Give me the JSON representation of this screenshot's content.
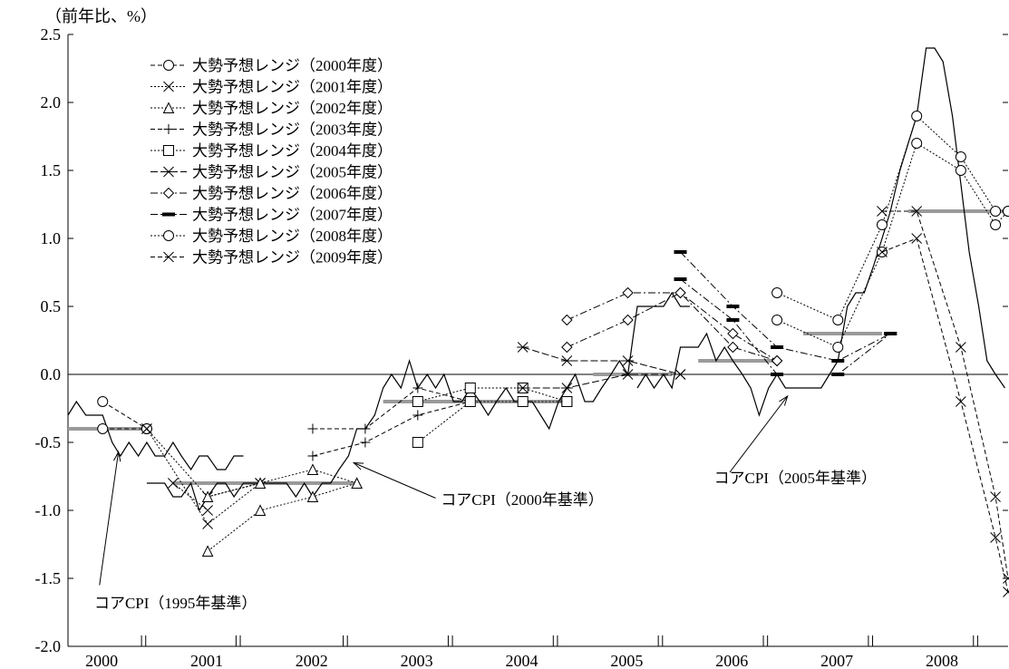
{
  "chart_data": {
    "type": "line",
    "unit_label": "（前年比、%）",
    "ylim": [
      -2.0,
      2.5
    ],
    "yticks": [
      2.5,
      2.0,
      1.5,
      1.0,
      0.5,
      0.0,
      -0.5,
      -1.0,
      -1.5,
      -2.0
    ],
    "ytick_labels": [
      "2.5",
      "2.0",
      "1.5",
      "1.0",
      "0.5",
      "0.0",
      "-0.5",
      "-1.0",
      "-1.5",
      "-2.0"
    ],
    "xlim": [
      2000.0,
      2008.95
    ],
    "x_year_labels": [
      "2000",
      "2001",
      "2002",
      "2003",
      "2004",
      "2005",
      "2006",
      "2007",
      "2008"
    ],
    "x_minor_ticks": [
      2000.7,
      2000.74,
      2001.6,
      2001.64,
      2002.62,
      2002.66,
      2003.62,
      2003.66,
      2004.62,
      2004.66,
      2005.62,
      2005.66,
      2006.62,
      2006.66,
      2007.62,
      2007.66,
      2008.62,
      2008.66
    ],
    "grid": false,
    "legend_position": "top-left",
    "legend": [
      {
        "label": "大勢予想レンジ（2000年度）",
        "marker": "circle",
        "dash": "5,3"
      },
      {
        "label": "大勢予想レンジ（2001年度）",
        "marker": "x",
        "dash": "2,2"
      },
      {
        "label": "大勢予想レンジ（2002年度）",
        "marker": "triangle",
        "dash": "2,2"
      },
      {
        "label": "大勢予想レンジ（2003年度）",
        "marker": "plus",
        "dash": "5,3"
      },
      {
        "label": "大勢予想レンジ（2004年度）",
        "marker": "square",
        "dash": "2,2"
      },
      {
        "label": "大勢予想レンジ（2005年度）",
        "marker": "asterisk",
        "dash": "8,3"
      },
      {
        "label": "大勢予想レンジ（2006年度）",
        "marker": "diamond",
        "dash": "8,3,2,3"
      },
      {
        "label": "大勢予想レンジ（2007年度）",
        "marker": "bar",
        "dash": "8,3,2,3"
      },
      {
        "label": "大勢予想レンジ（2008年度）",
        "marker": "circle",
        "dash": "2,2"
      },
      {
        "label": "大勢予想レンジ（2009年度）",
        "marker": "x",
        "dash": "5,3"
      }
    ],
    "annotations": [
      {
        "text": "コアCPI（1995年基準）",
        "text_at": [
          2000.25,
          -1.72
        ],
        "arrow_from": [
          2000.3,
          -1.55
        ],
        "arrow_to": [
          2000.48,
          -0.57
        ]
      },
      {
        "text": "コアCPI（2000年基準）",
        "text_at": [
          2003.55,
          -0.96
        ],
        "arrow_from": [
          2003.5,
          -0.91
        ],
        "arrow_to": [
          2002.72,
          -0.65
        ]
      },
      {
        "text": "コアCPI（2005年基準）",
        "text_at": [
          2006.15,
          -0.8
        ],
        "arrow_from": [
          2006.3,
          -0.72
        ],
        "arrow_to": [
          2006.85,
          -0.16
        ]
      }
    ],
    "core_cpi_series": [
      {
        "name": "コアCPI（1995年基準）",
        "x": [
          2000.0,
          2000.08,
          2000.17,
          2000.25,
          2000.33,
          2000.42,
          2000.5,
          2000.58,
          2000.67,
          2000.75,
          2000.83,
          2000.92,
          2001.0,
          2001.08,
          2001.17,
          2001.25,
          2001.33,
          2001.42,
          2001.5,
          2001.58,
          2001.67
        ],
        "y": [
          -0.3,
          -0.2,
          -0.3,
          -0.3,
          -0.3,
          -0.5,
          -0.6,
          -0.5,
          -0.6,
          -0.5,
          -0.6,
          -0.6,
          -0.5,
          -0.6,
          -0.7,
          -0.6,
          -0.6,
          -0.7,
          -0.7,
          -0.6,
          -0.6
        ]
      },
      {
        "name": "コアCPI（2000年基準）",
        "x": [
          2000.75,
          2000.83,
          2000.92,
          2001.0,
          2001.08,
          2001.17,
          2001.25,
          2001.33,
          2001.42,
          2001.5,
          2001.58,
          2001.67,
          2001.75,
          2001.83,
          2001.92,
          2002.0,
          2002.08,
          2002.17,
          2002.25,
          2002.33,
          2002.42,
          2002.5,
          2002.58,
          2002.67,
          2002.75,
          2002.83,
          2002.92,
          2003.0,
          2003.08,
          2003.17,
          2003.25,
          2003.33,
          2003.42,
          2003.5,
          2003.58,
          2003.67,
          2003.75,
          2003.83,
          2003.92,
          2004.0,
          2004.08,
          2004.17,
          2004.25,
          2004.33,
          2004.42,
          2004.5,
          2004.58,
          2004.67,
          2004.75,
          2004.83,
          2004.92,
          2005.0,
          2005.08,
          2005.17,
          2005.25,
          2005.33,
          2005.42,
          2005.5,
          2005.58,
          2005.67,
          2005.75,
          2005.83,
          2005.92
        ],
        "y": [
          -0.8,
          -0.8,
          -0.8,
          -0.9,
          -0.9,
          -0.8,
          -1.0,
          -0.9,
          -0.8,
          -0.8,
          -0.9,
          -0.8,
          -0.8,
          -0.8,
          -0.8,
          -0.8,
          -0.8,
          -0.9,
          -0.8,
          -0.9,
          -0.8,
          -0.8,
          -0.7,
          -0.6,
          -0.4,
          -0.4,
          -0.3,
          -0.1,
          0.0,
          -0.1,
          0.1,
          -0.1,
          0.0,
          -0.1,
          0.0,
          -0.2,
          -0.2,
          -0.1,
          -0.2,
          -0.3,
          -0.2,
          -0.1,
          -0.2,
          -0.2,
          -0.2,
          -0.3,
          -0.4,
          -0.2,
          -0.1,
          0.0,
          -0.2,
          -0.2,
          -0.1,
          0.0,
          0.1,
          0.0,
          0.5,
          0.5,
          0.5,
          0.5,
          0.6,
          0.5,
          0.5
        ]
      },
      {
        "name": "コアCPI（2005年基準）",
        "x": [
          2005.42,
          2005.5,
          2005.58,
          2005.67,
          2005.75,
          2005.83,
          2005.92,
          2006.0,
          2006.08,
          2006.17,
          2006.25,
          2006.33,
          2006.42,
          2006.5,
          2006.58,
          2006.67,
          2006.75,
          2006.83,
          2006.92,
          2007.0,
          2007.08,
          2007.17,
          2007.25,
          2007.33,
          2007.42,
          2007.5,
          2007.58,
          2007.67,
          2007.75,
          2007.83,
          2007.92,
          2008.0,
          2008.08,
          2008.17,
          2008.25,
          2008.33,
          2008.42,
          2008.5,
          2008.58,
          2008.67,
          2008.75,
          2008.83,
          2008.92
        ],
        "y": [
          -0.1,
          0.0,
          -0.1,
          0.0,
          -0.1,
          0.2,
          0.2,
          0.2,
          0.3,
          0.1,
          0.2,
          0.1,
          0.0,
          -0.1,
          -0.3,
          -0.1,
          0.0,
          -0.1,
          -0.1,
          -0.1,
          -0.1,
          -0.1,
          0.0,
          0.1,
          0.5,
          0.6,
          0.6,
          0.8,
          1.0,
          1.2,
          1.5,
          1.7,
          1.9,
          2.4,
          2.4,
          2.3,
          1.9,
          1.4,
          0.9,
          0.5,
          0.1,
          0.0,
          -0.1
        ]
      }
    ],
    "consensus_median_bars": [
      {
        "x0": 2000.0,
        "x1": 2000.75,
        "y": -0.4
      },
      {
        "x0": 2001.0,
        "x1": 2002.75,
        "y": -0.8
      },
      {
        "x0": 2003.0,
        "x1": 2004.75,
        "y": -0.2
      },
      {
        "x0": 2005.0,
        "x1": 2005.75,
        "y": 0.0
      },
      {
        "x0": 2006.0,
        "x1": 2006.75,
        "y": 0.1
      },
      {
        "x0": 2007.0,
        "x1": 2007.75,
        "y": 0.3
      },
      {
        "x0": 2008.0,
        "x1": 2008.95,
        "y": 1.2
      }
    ],
    "forecast_series": [
      {
        "name": "大勢予想レンジ（2000年度）",
        "marker": "circle",
        "dash": "5,3",
        "lines": [
          {
            "x": [
              2000.33,
              2000.75
            ],
            "y": [
              -0.2,
              -0.4
            ]
          },
          {
            "x": [
              2000.33,
              2000.75
            ],
            "y": [
              -0.4,
              -0.4
            ]
          }
        ]
      },
      {
        "name": "大勢予想レンジ（2001年度）",
        "marker": "x",
        "dash": "2,2",
        "lines": [
          {
            "x": [
              2000.75,
              2001.33,
              2001.83
            ],
            "y": [
              -0.4,
              -0.9,
              -0.8
            ]
          },
          {
            "x": [
              2000.75,
              2001.33,
              2001.83
            ],
            "y": [
              -0.4,
              -1.1,
              -0.8
            ]
          },
          {
            "x": [
              2001.0,
              2001.33
            ],
            "y": [
              -0.8,
              -1.0
            ]
          }
        ]
      },
      {
        "name": "大勢予想レンジ（2002年度）",
        "marker": "triangle",
        "dash": "2,2",
        "lines": [
          {
            "x": [
              2001.33,
              2001.83,
              2002.33,
              2002.75
            ],
            "y": [
              -0.9,
              -0.8,
              -0.7,
              -0.8
            ]
          },
          {
            "x": [
              2001.33,
              2001.83,
              2002.33,
              2002.75
            ],
            "y": [
              -1.3,
              -1.0,
              -0.9,
              -0.8
            ]
          }
        ]
      },
      {
        "name": "大勢予想レンジ（2003年度）",
        "marker": "plus",
        "dash": "5,3",
        "lines": [
          {
            "x": [
              2002.33,
              2002.83,
              2003.33,
              2003.83
            ],
            "y": [
              -0.4,
              -0.4,
              -0.1,
              -0.2
            ]
          },
          {
            "x": [
              2002.33,
              2002.83,
              2003.33,
              2003.83
            ],
            "y": [
              -0.6,
              -0.5,
              -0.3,
              -0.2
            ]
          }
        ]
      },
      {
        "name": "大勢予想レンジ（2004年度）",
        "marker": "square",
        "dash": "2,2",
        "lines": [
          {
            "x": [
              2003.33,
              2003.83,
              2004.33,
              2004.75
            ],
            "y": [
              -0.2,
              -0.1,
              -0.1,
              -0.2
            ]
          },
          {
            "x": [
              2003.33,
              2003.83,
              2004.33,
              2004.75
            ],
            "y": [
              -0.5,
              -0.2,
              -0.2,
              -0.2
            ]
          }
        ]
      },
      {
        "name": "大勢予想レンジ（2005年度）",
        "marker": "asterisk",
        "dash": "8,3",
        "lines": [
          {
            "x": [
              2004.33,
              2004.75,
              2005.33,
              2005.83
            ],
            "y": [
              0.2,
              0.1,
              0.1,
              0.0
            ]
          },
          {
            "x": [
              2004.33,
              2004.75,
              2005.33,
              2005.83
            ],
            "y": [
              -0.1,
              -0.1,
              0.0,
              0.0
            ]
          }
        ]
      },
      {
        "name": "大勢予想レンジ（2006年度）",
        "marker": "diamond",
        "dash": "8,3,2,3",
        "lines": [
          {
            "x": [
              2004.75,
              2005.33,
              2005.83,
              2006.33,
              2006.75
            ],
            "y": [
              0.4,
              0.6,
              0.6,
              0.3,
              0.1
            ]
          },
          {
            "x": [
              2004.75,
              2005.33,
              2005.83,
              2006.33,
              2006.75
            ],
            "y": [
              0.2,
              0.4,
              0.6,
              0.2,
              0.1
            ]
          }
        ]
      },
      {
        "name": "大勢予想レンジ（2007年度）",
        "marker": "bar",
        "dash": "8,3,2,3",
        "lines": [
          {
            "x": [
              2005.83,
              2006.33,
              2006.75,
              2007.33,
              2007.83
            ],
            "y": [
              0.9,
              0.5,
              0.2,
              0.1,
              0.3
            ]
          },
          {
            "x": [
              2005.83,
              2006.33,
              2006.75,
              2007.33,
              2007.83
            ],
            "y": [
              0.7,
              0.4,
              0.0,
              0.0,
              0.3
            ]
          }
        ]
      },
      {
        "name": "大勢予想レンジ（2008年度）",
        "marker": "circle",
        "dash": "2,2",
        "lines": [
          {
            "x": [
              2006.75,
              2007.33,
              2007.75,
              2008.08,
              2008.5,
              2008.83,
              2008.95
            ],
            "y": [
              0.6,
              0.4,
              1.1,
              1.9,
              1.6,
              1.2,
              1.2
            ]
          },
          {
            "x": [
              2006.75,
              2007.33,
              2007.75,
              2008.08,
              2008.5,
              2008.83,
              2008.95
            ],
            "y": [
              0.4,
              0.2,
              0.9,
              1.7,
              1.5,
              1.1,
              1.2
            ]
          }
        ]
      },
      {
        "name": "大勢予想レンジ（2009年度）",
        "marker": "x",
        "dash": "5,3",
        "lines": [
          {
            "x": [
              2007.75,
              2008.08,
              2008.5,
              2008.83,
              2008.95
            ],
            "y": [
              1.2,
              1.2,
              0.2,
              -0.9,
              -1.5
            ]
          },
          {
            "x": [
              2007.75,
              2008.08,
              2008.5,
              2008.83,
              2008.95
            ],
            "y": [
              0.9,
              1.0,
              -0.2,
              -1.2,
              -1.6
            ]
          }
        ]
      }
    ]
  }
}
